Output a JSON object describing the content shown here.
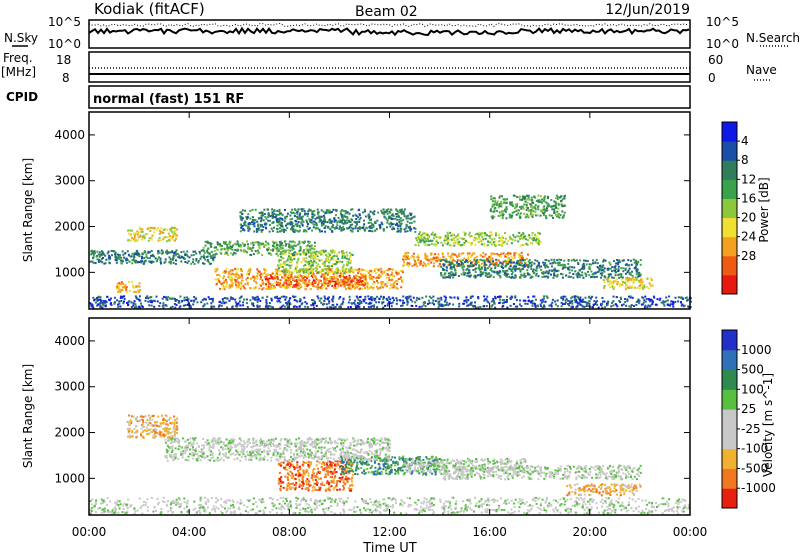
{
  "header": {
    "station": "Kodiak (fitACF)",
    "beam": "Beam 02",
    "date": "12/Jun/2019"
  },
  "left_labels": {
    "nsky": "N.Sky",
    "freq": "Freq.",
    "freq_unit": "[MHz]",
    "cpid": "CPID"
  },
  "right_labels": {
    "nsearch": "N.Search",
    "nave": "Nave"
  },
  "noise_panel": {
    "left_ticks": [
      "10^5",
      "10^0"
    ],
    "right_ticks": [
      "10^5",
      "10^0"
    ]
  },
  "freq_panel": {
    "left_ticks": [
      "18",
      "8"
    ],
    "right_ticks": [
      "60",
      "0"
    ]
  },
  "cpid_text": "normal (fast) 151 RF",
  "chart_data": [
    {
      "type": "heatmap",
      "title": "",
      "xlabel": "",
      "ylabel": "Slant Range [km]",
      "x_ticks": [
        "00:00",
        "04:00",
        "08:00",
        "12:00",
        "16:00",
        "20:00",
        "00:00"
      ],
      "y_ticks": [
        1000,
        2000,
        3000,
        4000
      ],
      "xlim": [
        0,
        24
      ],
      "ylim": [
        200,
        4500
      ],
      "colorbar": {
        "label": "Power [dB]",
        "ticks": [
          "4",
          "8",
          "12",
          "16",
          "20",
          "24",
          "28"
        ],
        "colors": [
          "#1018e8",
          "#1a4fa8",
          "#2f7d5a",
          "#3aa24a",
          "#8cc83c",
          "#f0e030",
          "#f5a020",
          "#ee5a14",
          "#e81a10"
        ]
      },
      "echo_regions": [
        {
          "t0": 7.0,
          "t1": 11.0,
          "r0": 700,
          "r1": 950,
          "level": 8
        },
        {
          "t0": 5.0,
          "t1": 12.5,
          "r0": 650,
          "r1": 1100,
          "level": 6
        },
        {
          "t0": 7.5,
          "t1": 10.5,
          "r0": 1000,
          "r1": 1500,
          "level": 4
        },
        {
          "t0": 4.5,
          "t1": 9.0,
          "r0": 1400,
          "r1": 1700,
          "level": 3
        },
        {
          "t0": 12.5,
          "t1": 17.5,
          "r0": 1150,
          "r1": 1450,
          "level": 6
        },
        {
          "t0": 13.0,
          "t1": 18.0,
          "r0": 1600,
          "r1": 1900,
          "level": 4
        },
        {
          "t0": 1.5,
          "t1": 3.5,
          "r0": 1700,
          "r1": 2000,
          "level": 5
        },
        {
          "t0": 0.0,
          "t1": 5.0,
          "r0": 1200,
          "r1": 1500,
          "level": 2
        },
        {
          "t0": 1.0,
          "t1": 2.0,
          "r0": 580,
          "r1": 820,
          "level": 6
        },
        {
          "t0": 14.0,
          "t1": 22.0,
          "r0": 900,
          "r1": 1300,
          "level": 2
        },
        {
          "t0": 20.5,
          "t1": 22.5,
          "r0": 650,
          "r1": 900,
          "level": 5
        },
        {
          "t0": 6.0,
          "t1": 13.0,
          "r0": 1900,
          "r1": 2400,
          "level": 2
        },
        {
          "t0": 16.0,
          "t1": 19.0,
          "r0": 2200,
          "r1": 2700,
          "level": 3
        },
        {
          "t0": 0.0,
          "t1": 24.0,
          "r0": 250,
          "r1": 500,
          "level": 1
        }
      ]
    },
    {
      "type": "heatmap",
      "title": "",
      "xlabel": "Time UT",
      "ylabel": "Slant Range [km]",
      "x_ticks": [
        "00:00",
        "04:00",
        "08:00",
        "12:00",
        "16:00",
        "20:00",
        "00:00"
      ],
      "y_ticks": [
        1000,
        2000,
        3000,
        4000
      ],
      "xlim": [
        0,
        24
      ],
      "ylim": [
        200,
        4500
      ],
      "colorbar": {
        "label": "Velocity [m s^-1]",
        "ticks": [
          "1000",
          "500",
          "100",
          "25",
          "-25",
          "-100",
          "-500",
          "-1000"
        ],
        "colors": [
          "#2030c8",
          "#3070b8",
          "#2f8a50",
          "#58c040",
          "#c8c8c8",
          "#c8c8c8",
          "#f0b030",
          "#f07820",
          "#e82010"
        ]
      },
      "echo_regions": [
        {
          "t0": 7.5,
          "t1": 10.5,
          "r0": 750,
          "r1": 1400,
          "level": 7
        },
        {
          "t0": 10.0,
          "t1": 14.0,
          "r0": 1100,
          "r1": 1500,
          "level": 2
        },
        {
          "t0": 12.5,
          "t1": 17.5,
          "r0": 1150,
          "r1": 1450,
          "level": 4
        },
        {
          "t0": 1.5,
          "t1": 3.5,
          "r0": 1900,
          "r1": 2400,
          "level": 6
        },
        {
          "t0": 0.0,
          "t1": 24.0,
          "r0": 250,
          "r1": 600,
          "level": 4
        },
        {
          "t0": 3.0,
          "t1": 12.0,
          "r0": 1400,
          "r1": 1900,
          "level": 4
        },
        {
          "t0": 14.0,
          "t1": 22.0,
          "r0": 1000,
          "r1": 1300,
          "level": 4
        },
        {
          "t0": 19.0,
          "t1": 22.0,
          "r0": 650,
          "r1": 900,
          "level": 6
        }
      ]
    }
  ]
}
